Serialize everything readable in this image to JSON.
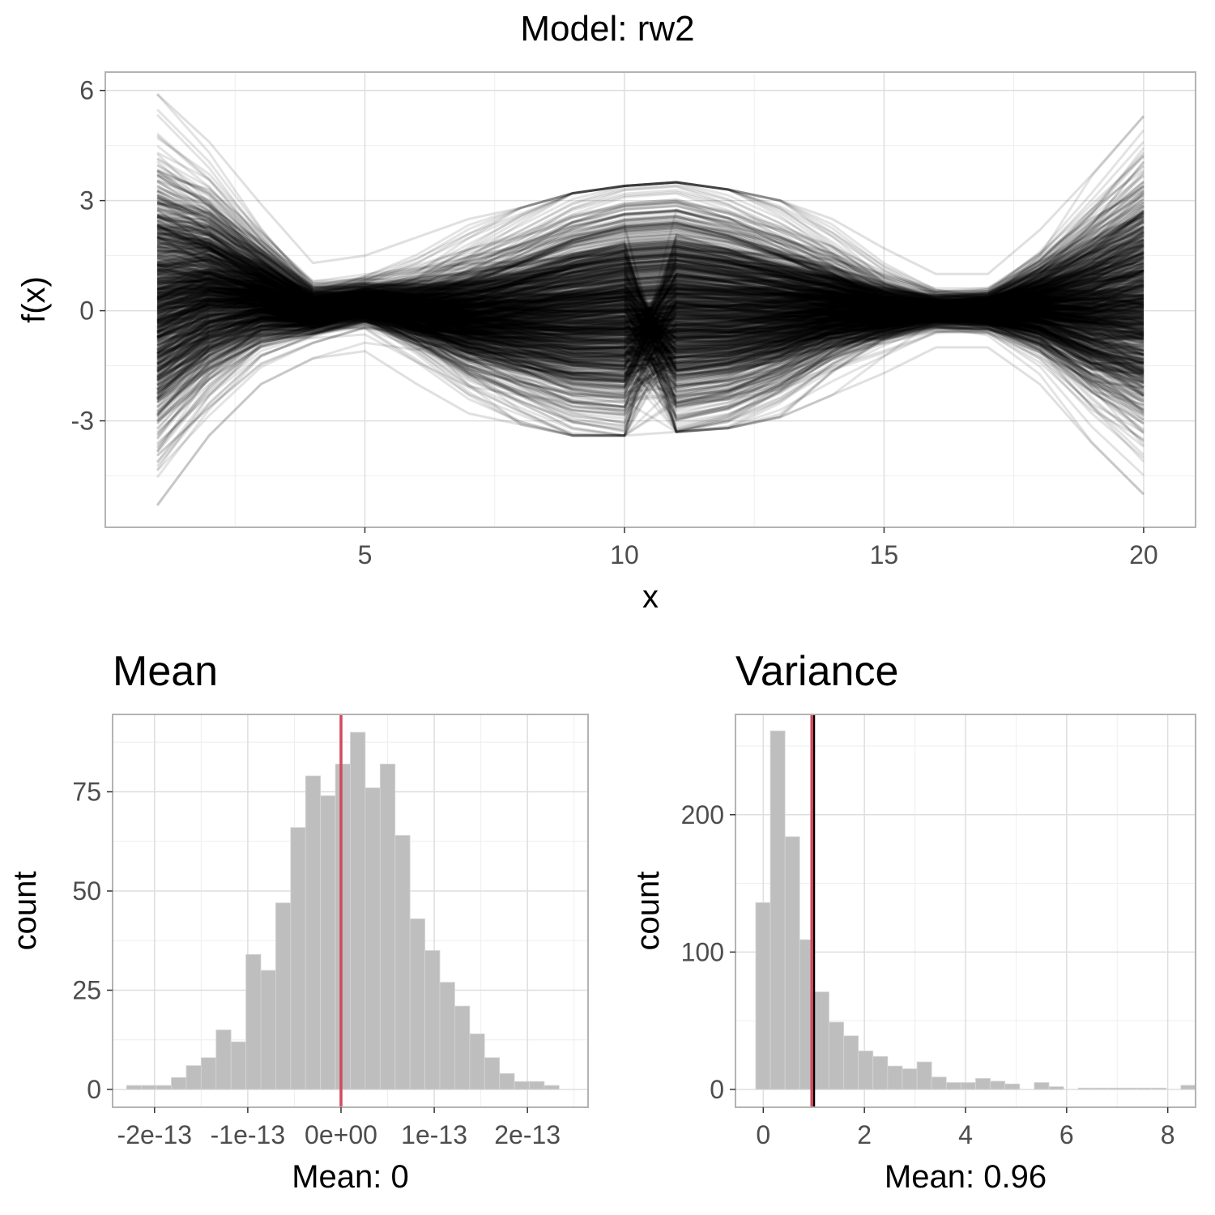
{
  "suptitle": "Model: rw2",
  "colors": {
    "line": "#000000",
    "grid_major": "#dedede",
    "grid_minor": "#eeeeee",
    "panel_border": "#b3b3b3",
    "bar_fill": "#bebebe",
    "tick_text": "#4d4d4d",
    "mean_line": "#d1495b",
    "true_line": "#000000"
  },
  "chart_data": [
    {
      "type": "line",
      "title": "",
      "xlabel": "x",
      "ylabel": "f(x)",
      "xlim": [
        0,
        21
      ],
      "ylim": [
        -5.9,
        6.5
      ],
      "xticks": [
        5,
        10,
        15,
        20
      ],
      "xtick_labels": [
        "5",
        "10",
        "15",
        "20"
      ],
      "yticks": [
        -3,
        0,
        3,
        6
      ],
      "ytick_labels": [
        "-3",
        "0",
        "3",
        "6"
      ],
      "x": [
        1,
        2,
        3,
        4,
        5,
        6,
        7,
        8,
        9,
        10,
        11,
        12,
        13,
        14,
        15,
        16,
        17,
        18,
        19,
        20
      ],
      "n_series": 1000,
      "envelope_upper": [
        5.9,
        4.6,
        2.9,
        1.3,
        1.5,
        2.0,
        2.5,
        2.8,
        3.2,
        3.4,
        3.5,
        3.3,
        3.0,
        2.5,
        1.7,
        1.0,
        1.0,
        2.2,
        3.7,
        5.3
      ],
      "envelope_lower": [
        -5.3,
        -3.4,
        -2.0,
        -1.3,
        -1.1,
        -2.0,
        -2.8,
        -3.1,
        -3.4,
        -3.4,
        -3.3,
        -3.2,
        -2.9,
        -2.3,
        -1.7,
        -1.0,
        -1.0,
        -2.0,
        -3.6,
        -5.0
      ],
      "grid": true,
      "legend": "none"
    },
    {
      "type": "bar",
      "title": "Mean",
      "xlabel": "Mean: 0",
      "ylabel": "count",
      "xlim": [
        -2.45e-13,
        2.65e-13
      ],
      "ylim": [
        -4.5,
        94.5
      ],
      "xticks": [
        -2e-13,
        -1e-13,
        0,
        1e-13,
        2e-13
      ],
      "xtick_labels": [
        "-2e-13",
        "-1e-13",
        "0e+00",
        "1e-13",
        "2e-13"
      ],
      "yticks": [
        0,
        25,
        50,
        75
      ],
      "ytick_labels": [
        "0",
        "25",
        "50",
        "75"
      ],
      "bin_start": -2.3e-13,
      "bin_width": 1.6e-14,
      "values": [
        1,
        1,
        1,
        3,
        6,
        8,
        15,
        12,
        34,
        30,
        47,
        66,
        79,
        74,
        82,
        90,
        76,
        82,
        64,
        43,
        35,
        27,
        21,
        14,
        8,
        4,
        2,
        2,
        1
      ],
      "mean_line": 0,
      "grid": true,
      "legend": "none"
    },
    {
      "type": "bar",
      "title": "Variance",
      "xlabel": "Mean: 0.96",
      "ylabel": "count",
      "xlim": [
        -0.55,
        8.55
      ],
      "ylim": [
        -13,
        273
      ],
      "xticks": [
        0,
        2,
        4,
        6,
        8
      ],
      "xtick_labels": [
        "0",
        "2",
        "4",
        "6",
        "8"
      ],
      "yticks": [
        0,
        100,
        200
      ],
      "ytick_labels": [
        "0",
        "100",
        "200"
      ],
      "bin_start": -0.15,
      "bin_width": 0.29,
      "values": [
        136,
        261,
        184,
        109,
        71,
        49,
        39,
        28,
        24,
        17,
        15,
        20,
        9,
        5,
        5,
        8,
        6,
        4,
        0,
        5,
        2,
        0,
        1,
        1,
        1,
        1,
        1,
        1,
        0,
        3
      ],
      "mean_line": 0.96,
      "true_line": 1,
      "grid": true,
      "legend": "none"
    }
  ]
}
